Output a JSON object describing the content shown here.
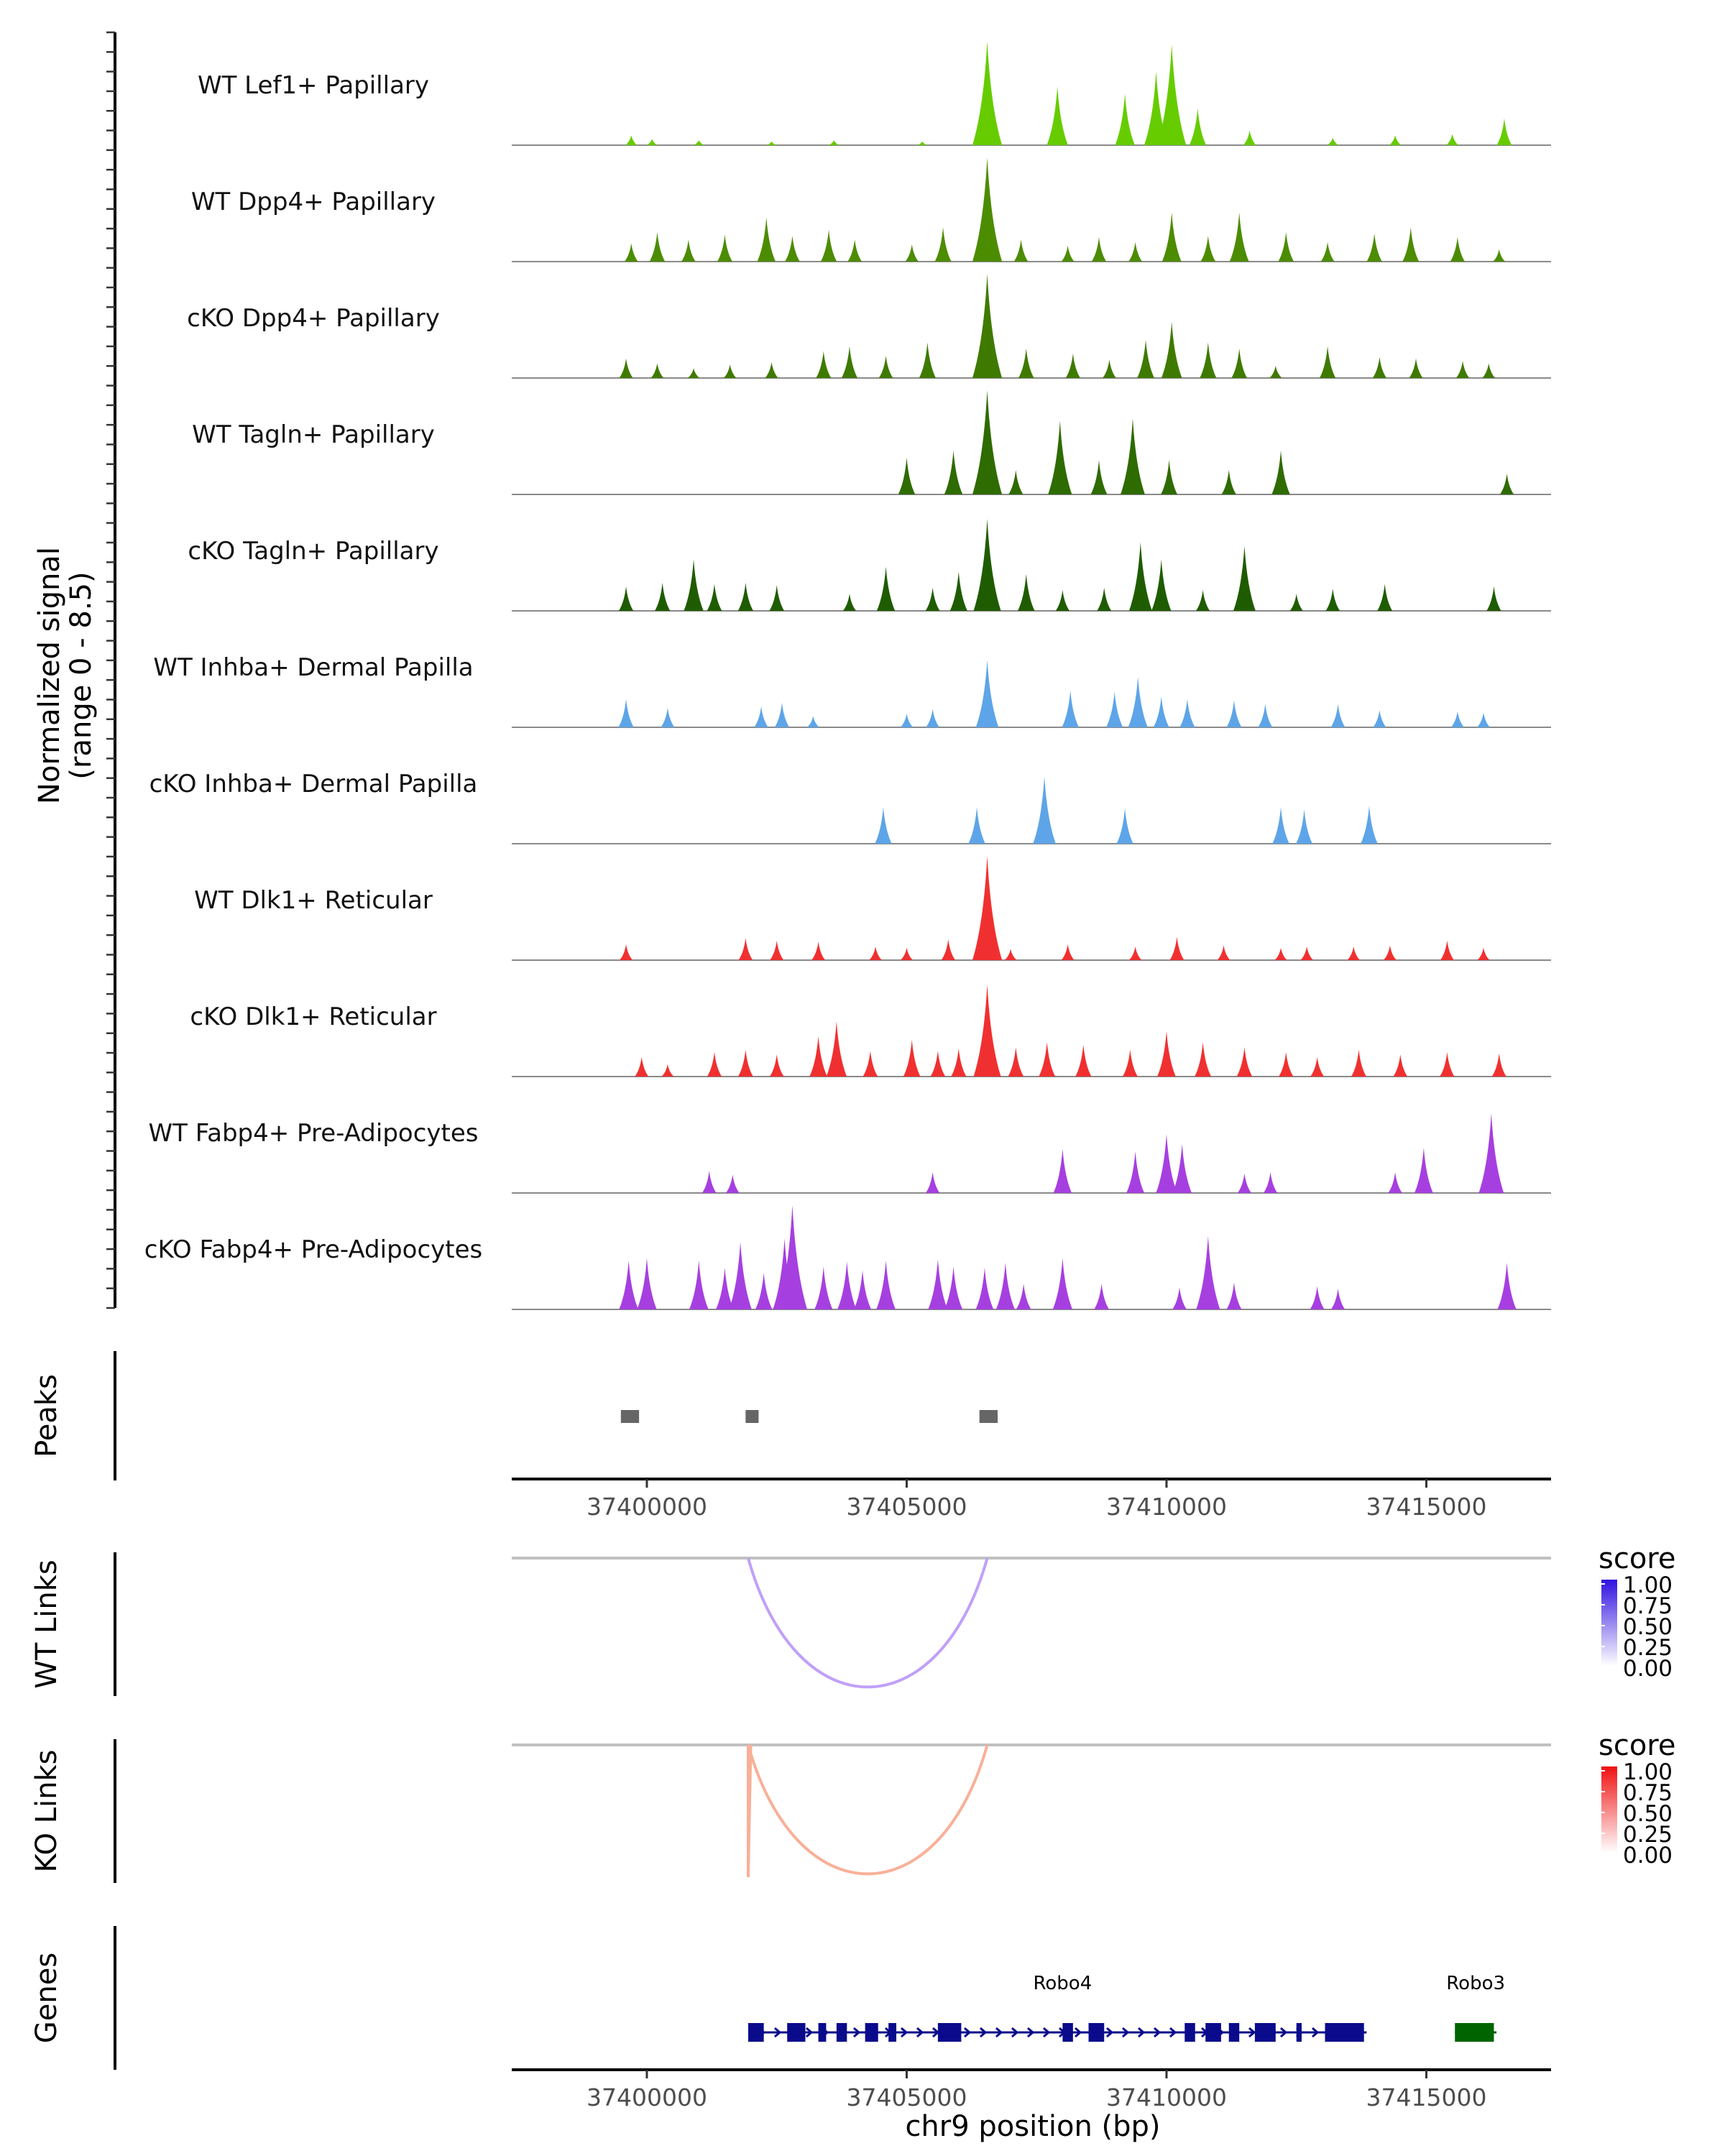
{
  "chart_data": {
    "type": "area",
    "title": "",
    "xlabel": "chr9 position (bp)",
    "ylabel": "Normalized signal\n(range 0 - 8.5)",
    "y_axis_lines": [
      "Normalized signal",
      "(range 0 - 8.5)"
    ],
    "xlim": [
      37397400,
      37417400
    ],
    "ylim": [
      0,
      8.5
    ],
    "x_ticks": [
      37400000,
      37405000,
      37410000,
      37415000
    ],
    "x_tick_labels": [
      "37400000",
      "37405000",
      "37410000",
      "37415000"
    ],
    "tracks": [
      {
        "name": "WT Lef1+ Papillary",
        "color": "#66CC00",
        "peaks": [
          [
            37399700,
            0.8
          ],
          [
            37400100,
            0.5
          ],
          [
            37401000,
            0.4
          ],
          [
            37402400,
            0.3
          ],
          [
            37403600,
            0.4
          ],
          [
            37405300,
            0.3
          ],
          [
            37406550,
            8.5
          ],
          [
            37407900,
            4.8
          ],
          [
            37409200,
            4.2
          ],
          [
            37409800,
            6.0
          ],
          [
            37410100,
            8.2
          ],
          [
            37410600,
            3.0
          ],
          [
            37411600,
            1.2
          ],
          [
            37413200,
            0.6
          ],
          [
            37414400,
            0.8
          ],
          [
            37415500,
            0.9
          ],
          [
            37416500,
            2.2
          ]
        ]
      },
      {
        "name": "WT Dpp4+ Papillary",
        "color": "#4C8C00",
        "peaks": [
          [
            37399700,
            1.5
          ],
          [
            37400200,
            2.4
          ],
          [
            37400800,
            1.8
          ],
          [
            37401500,
            2.2
          ],
          [
            37402300,
            3.6
          ],
          [
            37402800,
            2.1
          ],
          [
            37403500,
            2.6
          ],
          [
            37404000,
            1.8
          ],
          [
            37405100,
            1.4
          ],
          [
            37405700,
            2.8
          ],
          [
            37406550,
            8.5
          ],
          [
            37407200,
            1.8
          ],
          [
            37408100,
            1.3
          ],
          [
            37408700,
            2.0
          ],
          [
            37409400,
            1.6
          ],
          [
            37410100,
            4.0
          ],
          [
            37410800,
            2.1
          ],
          [
            37411400,
            4.0
          ],
          [
            37412300,
            2.4
          ],
          [
            37413100,
            1.6
          ],
          [
            37414000,
            2.3
          ],
          [
            37414700,
            2.8
          ],
          [
            37415600,
            2.0
          ],
          [
            37416400,
            1.0
          ]
        ]
      },
      {
        "name": "cKO Dpp4+ Papillary",
        "color": "#3F7A00",
        "peaks": [
          [
            37399600,
            1.6
          ],
          [
            37400200,
            1.2
          ],
          [
            37400900,
            0.8
          ],
          [
            37401600,
            1.1
          ],
          [
            37402400,
            1.3
          ],
          [
            37403400,
            2.2
          ],
          [
            37403900,
            2.6
          ],
          [
            37404600,
            1.8
          ],
          [
            37405400,
            2.9
          ],
          [
            37406550,
            8.5
          ],
          [
            37407300,
            2.4
          ],
          [
            37408200,
            2.0
          ],
          [
            37408900,
            1.5
          ],
          [
            37409600,
            3.1
          ],
          [
            37410100,
            4.6
          ],
          [
            37410800,
            2.9
          ],
          [
            37411400,
            2.4
          ],
          [
            37412100,
            1.0
          ],
          [
            37413100,
            2.6
          ],
          [
            37414100,
            1.7
          ],
          [
            37414800,
            1.6
          ],
          [
            37415700,
            1.4
          ],
          [
            37416200,
            1.2
          ]
        ]
      },
      {
        "name": "WT Tagln+ Papillary",
        "color": "#2E6B00",
        "peaks": [
          [
            37405000,
            3.0
          ],
          [
            37405900,
            3.6
          ],
          [
            37406550,
            8.5
          ],
          [
            37407100,
            2.0
          ],
          [
            37407950,
            6.0
          ],
          [
            37408700,
            2.8
          ],
          [
            37409350,
            6.2
          ],
          [
            37410050,
            2.8
          ],
          [
            37411200,
            2.0
          ],
          [
            37412200,
            3.6
          ],
          [
            37416550,
            1.7
          ]
        ]
      },
      {
        "name": "cKO Tagln+ Papillary",
        "color": "#1F5C00",
        "peaks": [
          [
            37399600,
            2.0
          ],
          [
            37400300,
            2.3
          ],
          [
            37400900,
            4.2
          ],
          [
            37401300,
            2.2
          ],
          [
            37401900,
            2.3
          ],
          [
            37402500,
            2.1
          ],
          [
            37403900,
            1.4
          ],
          [
            37404600,
            3.6
          ],
          [
            37405500,
            1.9
          ],
          [
            37406000,
            3.2
          ],
          [
            37406550,
            7.5
          ],
          [
            37407300,
            3.0
          ],
          [
            37408000,
            1.7
          ],
          [
            37408800,
            1.9
          ],
          [
            37409500,
            5.6
          ],
          [
            37409900,
            4.2
          ],
          [
            37410700,
            1.7
          ],
          [
            37411500,
            5.3
          ],
          [
            37412500,
            1.4
          ],
          [
            37413200,
            1.8
          ],
          [
            37414200,
            2.2
          ],
          [
            37416300,
            2.0
          ]
        ]
      },
      {
        "name": "WT Inhba+ Dermal Papilla",
        "color": "#5DA5E8",
        "peaks": [
          [
            37399600,
            2.3
          ],
          [
            37400400,
            1.6
          ],
          [
            37402200,
            1.7
          ],
          [
            37402600,
            2.0
          ],
          [
            37403200,
            0.9
          ],
          [
            37405000,
            1.1
          ],
          [
            37405500,
            1.5
          ],
          [
            37406550,
            5.5
          ],
          [
            37408150,
            3.0
          ],
          [
            37409000,
            2.9
          ],
          [
            37409450,
            4.1
          ],
          [
            37409900,
            2.5
          ],
          [
            37410400,
            2.3
          ],
          [
            37411300,
            2.2
          ],
          [
            37411900,
            1.9
          ],
          [
            37413300,
            1.9
          ],
          [
            37414100,
            1.4
          ],
          [
            37415600,
            1.3
          ],
          [
            37416100,
            1.2
          ]
        ]
      },
      {
        "name": "cKO Inhba+ Dermal Papilla",
        "color": "#5DA5E8",
        "peaks": [
          [
            37404550,
            3.0
          ],
          [
            37406350,
            3.0
          ],
          [
            37407650,
            5.5
          ],
          [
            37409200,
            2.9
          ],
          [
            37412200,
            3.0
          ],
          [
            37412650,
            2.8
          ],
          [
            37413900,
            3.1
          ]
        ]
      },
      {
        "name": "WT Dlk1+ Reticular",
        "color": "#F03030",
        "peaks": [
          [
            37399600,
            1.3
          ],
          [
            37401900,
            1.8
          ],
          [
            37402500,
            1.6
          ],
          [
            37403300,
            1.5
          ],
          [
            37404400,
            1.1
          ],
          [
            37405000,
            1.0
          ],
          [
            37405800,
            1.7
          ],
          [
            37406550,
            8.5
          ],
          [
            37407000,
            0.9
          ],
          [
            37408100,
            1.3
          ],
          [
            37409400,
            1.1
          ],
          [
            37410200,
            1.9
          ],
          [
            37411100,
            1.2
          ],
          [
            37412200,
            1.0
          ],
          [
            37412700,
            1.1
          ],
          [
            37413600,
            1.1
          ],
          [
            37414300,
            1.2
          ],
          [
            37415400,
            1.6
          ],
          [
            37416100,
            1.0
          ]
        ]
      },
      {
        "name": "cKO Dlk1+ Reticular",
        "color": "#F03030",
        "peaks": [
          [
            37399900,
            1.6
          ],
          [
            37400400,
            1.0
          ],
          [
            37401300,
            2.0
          ],
          [
            37401900,
            2.2
          ],
          [
            37402500,
            1.8
          ],
          [
            37403300,
            3.3
          ],
          [
            37403650,
            4.5
          ],
          [
            37404300,
            2.1
          ],
          [
            37405100,
            3.0
          ],
          [
            37405600,
            2.1
          ],
          [
            37406000,
            2.3
          ],
          [
            37406550,
            7.5
          ],
          [
            37407100,
            2.4
          ],
          [
            37407700,
            2.8
          ],
          [
            37408400,
            2.6
          ],
          [
            37409300,
            2.2
          ],
          [
            37410000,
            3.7
          ],
          [
            37410700,
            2.8
          ],
          [
            37411500,
            2.4
          ],
          [
            37412300,
            2.0
          ],
          [
            37412900,
            1.6
          ],
          [
            37413700,
            2.2
          ],
          [
            37414500,
            1.8
          ],
          [
            37415400,
            2.0
          ],
          [
            37416400,
            1.9
          ]
        ]
      },
      {
        "name": "WT Fabp4+ Pre-Adipocytes",
        "color": "#A63FE0",
        "peaks": [
          [
            37401200,
            1.8
          ],
          [
            37401650,
            1.5
          ],
          [
            37405500,
            1.7
          ],
          [
            37408000,
            3.6
          ],
          [
            37409400,
            3.4
          ],
          [
            37410000,
            4.8
          ],
          [
            37410300,
            4.0
          ],
          [
            37411500,
            1.6
          ],
          [
            37412000,
            1.7
          ],
          [
            37414400,
            1.7
          ],
          [
            37414950,
            3.7
          ],
          [
            37416250,
            6.5
          ]
        ]
      },
      {
        "name": "cKO Fabp4+ Pre-Adipocytes",
        "color": "#A63FE0",
        "peaks": [
          [
            37399650,
            4.0
          ],
          [
            37400000,
            4.2
          ],
          [
            37401000,
            4.0
          ],
          [
            37401500,
            3.4
          ],
          [
            37401800,
            5.5
          ],
          [
            37402250,
            3.0
          ],
          [
            37402650,
            5.8
          ],
          [
            37402800,
            8.5
          ],
          [
            37403400,
            3.5
          ],
          [
            37403850,
            3.9
          ],
          [
            37404150,
            3.2
          ],
          [
            37404600,
            4.0
          ],
          [
            37405600,
            4.1
          ],
          [
            37405900,
            3.5
          ],
          [
            37406500,
            3.4
          ],
          [
            37406900,
            3.8
          ],
          [
            37407250,
            2.1
          ],
          [
            37408000,
            4.2
          ],
          [
            37408750,
            2.1
          ],
          [
            37410250,
            1.8
          ],
          [
            37410800,
            6.0
          ],
          [
            37411300,
            2.2
          ],
          [
            37412900,
            1.9
          ],
          [
            37413300,
            1.7
          ],
          [
            37416550,
            3.8
          ]
        ]
      }
    ],
    "peaks_track": {
      "label": "Peaks",
      "color": "#666666",
      "regions": [
        [
          37399500,
          37399850
        ],
        [
          37401900,
          37402150
        ],
        [
          37406400,
          37406750
        ]
      ]
    },
    "links_tracks": [
      {
        "label": "WT Links",
        "color": "#C0A0F8",
        "links": [
          {
            "start": 37401950,
            "end": 37406550,
            "score": 0.45
          }
        ],
        "legend": {
          "title": "score",
          "colors": [
            "#FFFFFF",
            "#3010E0"
          ],
          "ticks": [
            "1.00",
            "0.75",
            "0.50",
            "0.25",
            "0.00"
          ]
        }
      },
      {
        "label": "KO Links",
        "color": "#F8B098",
        "links": [
          {
            "start": 37401950,
            "end": 37406550,
            "score": 0.45
          },
          {
            "start": 37401950,
            "end": 37402000,
            "score": 0.5
          }
        ],
        "legend": {
          "title": "score",
          "colors": [
            "#FFFFFF",
            "#F01010"
          ],
          "ticks": [
            "1.00",
            "0.75",
            "0.50",
            "0.25",
            "0.00"
          ]
        }
      }
    ],
    "genes_track": {
      "label": "Genes",
      "genes": [
        {
          "name": "Robo4",
          "color": "#0A0A8C",
          "start": 37401950,
          "end": 37413850,
          "strand": "+",
          "exons": [
            [
              37401950,
              37402250
            ],
            [
              37402700,
              37403050
            ],
            [
              37403300,
              37403450
            ],
            [
              37403650,
              37403850
            ],
            [
              37404200,
              37404450
            ],
            [
              37404650,
              37404800
            ],
            [
              37405600,
              37406050
            ],
            [
              37408000,
              37408200
            ],
            [
              37408500,
              37408800
            ],
            [
              37410350,
              37410550
            ],
            [
              37410750,
              37411050
            ],
            [
              37411200,
              37411400
            ],
            [
              37411700,
              37412100
            ],
            [
              37412500,
              37412600
            ],
            [
              37413050,
              37413800
            ]
          ]
        },
        {
          "name": "Robo3",
          "color": "#006400",
          "start": 37415550,
          "end": 37416350,
          "strand": "+",
          "exons": [
            [
              37415550,
              37416300
            ]
          ]
        }
      ]
    }
  }
}
